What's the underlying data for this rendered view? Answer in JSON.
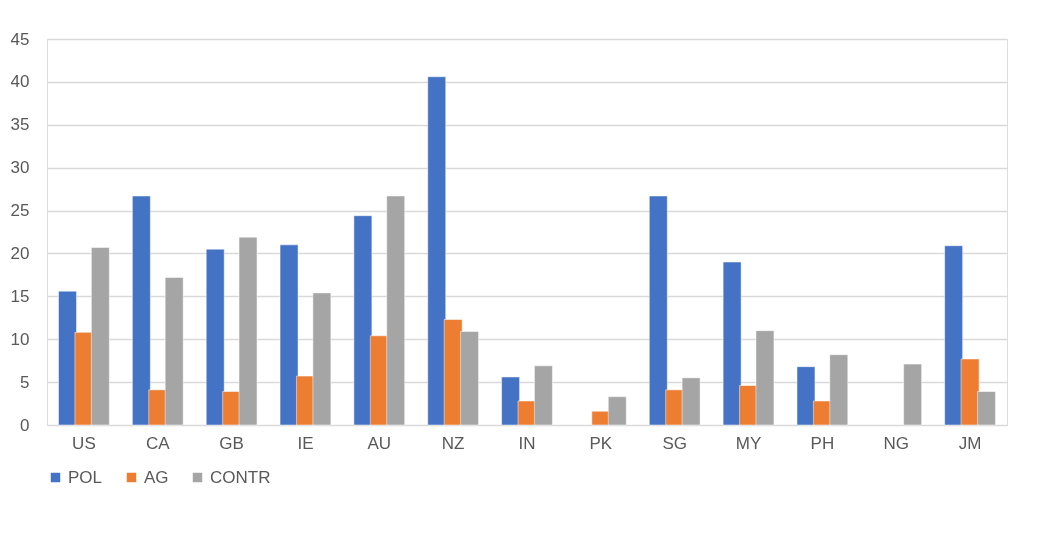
{
  "chart_data": {
    "type": "bar",
    "categories": [
      "US",
      "CA",
      "GB",
      "IE",
      "AU",
      "NZ",
      "IN",
      "PK",
      "SG",
      "MY",
      "PH",
      "NG",
      "JM"
    ],
    "series": [
      {
        "name": "POL",
        "color": "#4472c4",
        "values": [
          15.6,
          26.7,
          20.5,
          21.0,
          24.4,
          40.6,
          5.6,
          null,
          26.7,
          19.0,
          6.8,
          null,
          20.9
        ]
      },
      {
        "name": "AG",
        "color": "#ed7d31",
        "values": [
          10.8,
          4.1,
          3.9,
          5.7,
          10.4,
          12.3,
          2.8,
          1.6,
          4.1,
          4.6,
          2.8,
          null,
          7.7
        ]
      },
      {
        "name": "CONTR",
        "color": "#a5a5a5",
        "values": [
          20.7,
          17.2,
          21.9,
          15.4,
          26.7,
          10.9,
          6.9,
          3.3,
          5.5,
          11.0,
          8.2,
          7.1,
          3.9
        ]
      }
    ],
    "ylim": [
      0,
      45
    ],
    "yticks": [
      0,
      5,
      10,
      15,
      20,
      25,
      30,
      35,
      40,
      45
    ],
    "grid": "y",
    "legend": "bottom"
  }
}
